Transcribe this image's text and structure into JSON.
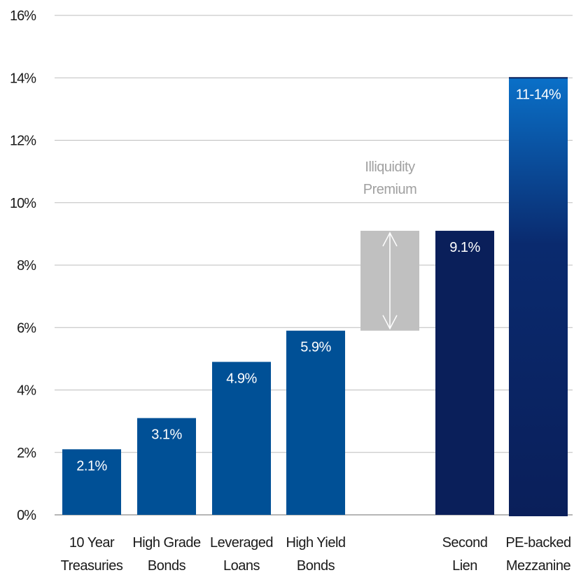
{
  "chart_data": {
    "type": "bar",
    "categories": [
      [
        "10 Year",
        "Treasuries"
      ],
      [
        "High Grade",
        "Bonds"
      ],
      [
        "Leveraged",
        "Loans"
      ],
      [
        "High Yield",
        "Bonds"
      ],
      [
        "",
        ""
      ],
      [
        "Second",
        "Lien"
      ],
      [
        "PE-backed",
        "Mezzanine"
      ]
    ],
    "values": [
      2.1,
      3.1,
      4.9,
      5.9,
      null,
      9.1,
      14.0
    ],
    "data_labels": [
      "2.1%",
      "3.1%",
      "4.9%",
      "5.9%",
      "",
      "9.1%",
      "11-14%"
    ],
    "bar_colors": [
      "#005096",
      "#005096",
      "#005096",
      "#005096",
      null,
      "#0a1f5a",
      "gradient"
    ],
    "gradient_colors": [
      "#0a70c8",
      "#0a1f5a"
    ],
    "illiquidity_band": {
      "from": 5.9,
      "to": 9.1,
      "color": "#c0c0c0",
      "arrow_color": "#ffffff"
    },
    "annotation": [
      "Illiquidity",
      "Premium"
    ],
    "y_ticks": [
      0,
      2,
      4,
      6,
      8,
      10,
      12,
      14,
      16
    ],
    "y_tick_labels": [
      "0%",
      "2%",
      "4%",
      "6%",
      "8%",
      "10%",
      "12%",
      "14%",
      "16%"
    ],
    "ylim": [
      0,
      16
    ],
    "grid": true,
    "title": "",
    "xlabel": "",
    "ylabel": ""
  }
}
